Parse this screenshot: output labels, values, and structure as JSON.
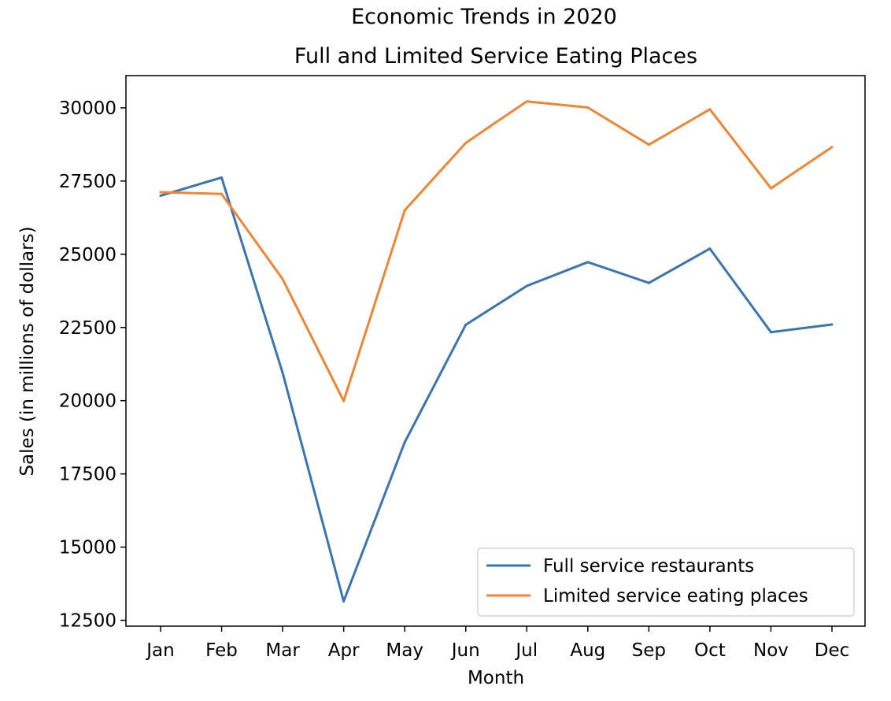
{
  "chart_data": {
    "type": "line",
    "title": "Economic Trends in 2020",
    "subtitle": "Full and Limited Service Eating Places",
    "xlabel": "Month",
    "ylabel": "Sales (in millions of dollars)",
    "categories": [
      "Jan",
      "Feb",
      "Mar",
      "Apr",
      "May",
      "Jun",
      "Jul",
      "Aug",
      "Sep",
      "Oct",
      "Nov",
      "Dec"
    ],
    "ylim": [
      12300,
      31100
    ],
    "yticks": [
      12500,
      15000,
      17500,
      20000,
      22500,
      25000,
      27500,
      30000
    ],
    "grid": false,
    "legend": "lower-right",
    "series": [
      {
        "name": "Full service restaurants",
        "color": "#3b75af",
        "values": [
          27000,
          27620,
          20950,
          13150,
          18580,
          22590,
          23920,
          24730,
          24020,
          25190,
          22340,
          22600
        ]
      },
      {
        "name": "Limited service eating places",
        "color": "#ef8636",
        "values": [
          27120,
          27060,
          24150,
          19990,
          26500,
          28800,
          30220,
          30010,
          28740,
          29950,
          27250,
          28660
        ]
      }
    ]
  }
}
